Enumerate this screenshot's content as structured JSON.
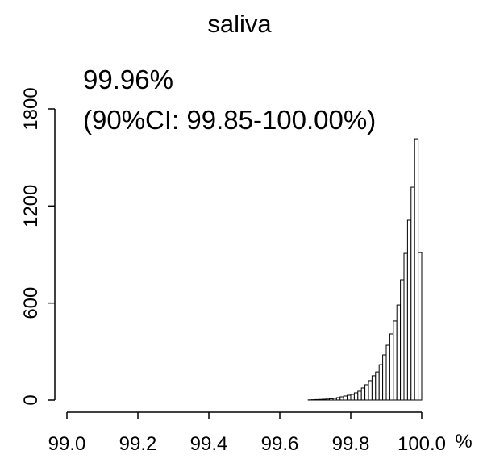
{
  "chart_data": {
    "type": "histogram",
    "title": "saliva",
    "annotations": [
      "99.96%",
      "(90%CI: 99.85-100.00%)"
    ],
    "xlabel": "%",
    "bins": [
      99,
      99.01,
      99.02,
      99.03,
      99.04,
      99.05,
      99.06,
      99.07,
      99.08,
      99.09,
      99.1,
      99.11,
      99.12,
      99.13,
      99.14,
      99.15,
      99.16,
      99.17,
      99.18,
      99.19,
      99.2,
      99.21,
      99.22,
      99.23,
      99.24,
      99.25,
      99.26,
      99.27,
      99.28,
      99.29,
      99.3,
      99.31,
      99.32,
      99.33,
      99.34,
      99.35,
      99.36,
      99.37,
      99.38,
      99.39,
      99.4,
      99.41,
      99.42,
      99.43,
      99.44,
      99.45,
      99.46,
      99.47,
      99.48,
      99.49,
      99.5,
      99.51,
      99.52,
      99.53,
      99.54,
      99.55,
      99.56,
      99.57,
      99.58,
      99.59,
      99.6,
      99.61,
      99.62,
      99.63,
      99.64,
      99.65,
      99.66,
      99.67,
      99.68,
      99.69,
      99.7,
      99.71,
      99.72,
      99.73,
      99.74,
      99.75,
      99.76,
      99.77,
      99.78,
      99.79,
      99.8,
      99.81,
      99.82,
      99.83,
      99.84,
      99.85,
      99.86,
      99.87,
      99.88,
      99.89,
      99.9,
      99.91,
      99.92,
      99.93,
      99.94,
      99.95,
      99.96,
      99.97,
      99.98,
      99.99,
      100
    ],
    "values": [
      0,
      0,
      0,
      0,
      0,
      0,
      0,
      0,
      0,
      0,
      0,
      0,
      0,
      0,
      0,
      0,
      0,
      0,
      0,
      0,
      0,
      0,
      0,
      0,
      0,
      0,
      0,
      0,
      0,
      0,
      0,
      0,
      0,
      0,
      0,
      0,
      0,
      0,
      0,
      0,
      0,
      0,
      0,
      0,
      0,
      0,
      0,
      0,
      0,
      0,
      0,
      0,
      0,
      0,
      0,
      0,
      0,
      0,
      0,
      0,
      0,
      0,
      0,
      0,
      0,
      0,
      0,
      0,
      1,
      2,
      3,
      4,
      5,
      6,
      8,
      10,
      15,
      20,
      25,
      30,
      35,
      45,
      55,
      75,
      95,
      120,
      150,
      174,
      219,
      279,
      339,
      409,
      489,
      588,
      743,
      907,
      1112,
      1316,
      1615,
      912
    ],
    "color": "#ffffff",
    "xlim": [
      99,
      100
    ],
    "xticks": [
      {
        "value": 99,
        "label": "99.0"
      },
      99.2,
      99.4,
      99.6,
      99.8,
      {
        "value": 100,
        "label": "100.0"
      }
    ],
    "ylim": [
      0,
      1800
    ],
    "yticks": [
      0,
      600,
      1200,
      1800
    ]
  }
}
